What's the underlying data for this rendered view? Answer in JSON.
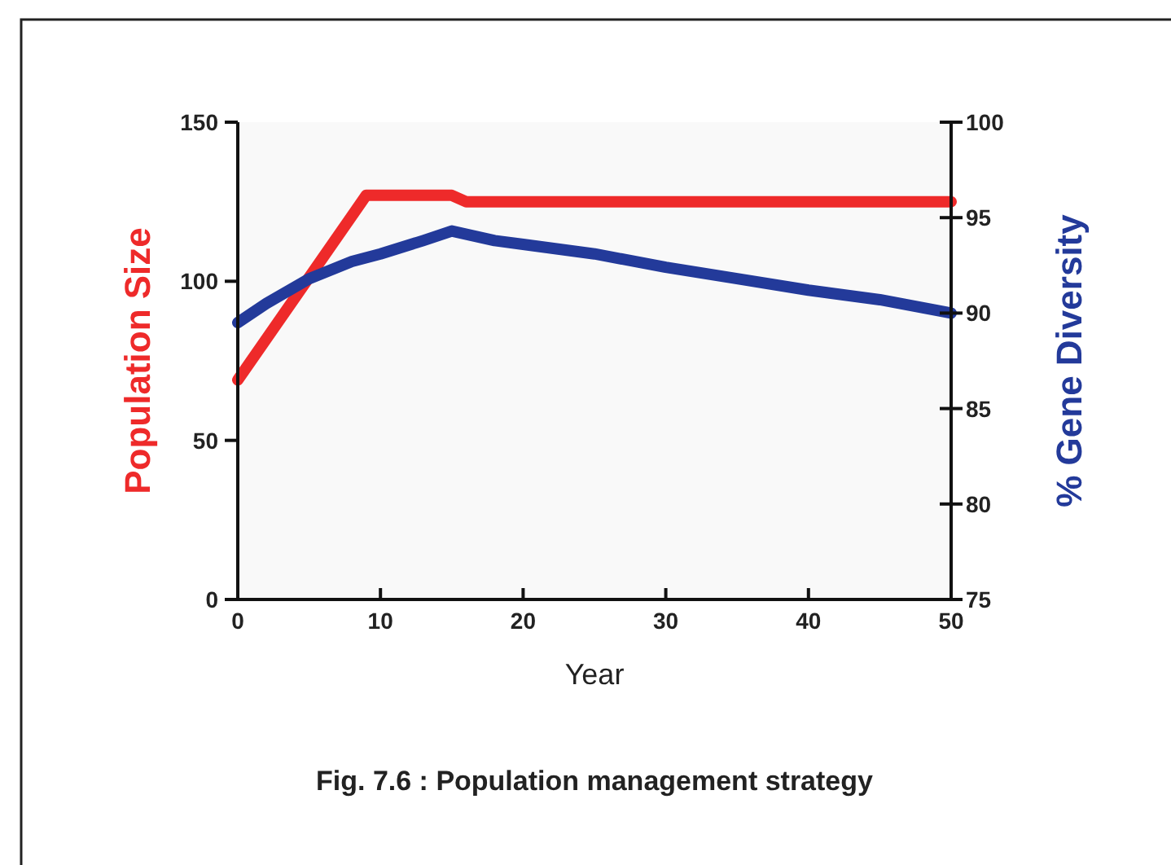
{
  "chart_data": {
    "type": "line",
    "title": "Fig. 7.6 : Population management strategy",
    "xlabel": "Year",
    "ylabel": "Population Size",
    "y2label": "% Gene Diversity",
    "xlim": [
      0,
      50
    ],
    "xticks": [
      0,
      10,
      20,
      30,
      40,
      50
    ],
    "ylim": [
      0,
      150
    ],
    "yticks": [
      0,
      50,
      100,
      150
    ],
    "y2lim": [
      75,
      100
    ],
    "y2ticks": [
      75,
      80,
      85,
      90,
      95,
      100
    ],
    "grid": false,
    "line_style": "solid",
    "marker": "none",
    "series": [
      {
        "color": "#ee2a2a",
        "x": [
          0,
          9,
          15,
          16,
          50
        ],
        "values": [
          69,
          127,
          127,
          125,
          125
        ]
      },
      {
        "color": "#233a9a",
        "axis": "y2",
        "x": [
          0,
          2,
          5,
          8,
          10,
          13,
          15,
          18,
          20,
          25,
          30,
          35,
          40,
          45,
          50
        ],
        "values": [
          89.5,
          90.5,
          91.8,
          92.7,
          93.1,
          93.8,
          94.3,
          93.8,
          93.6,
          93.1,
          92.4,
          91.8,
          91.2,
          90.7,
          90.0
        ]
      }
    ]
  }
}
